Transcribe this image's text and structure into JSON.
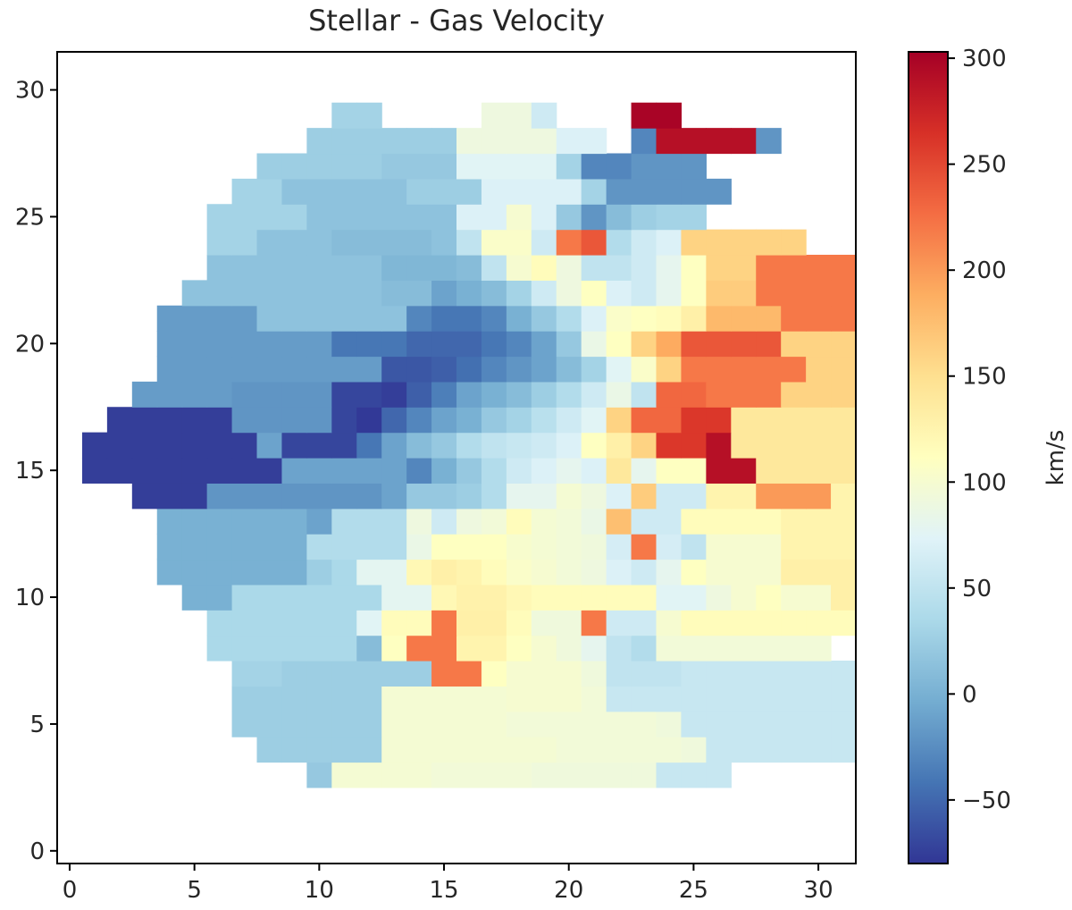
{
  "chart_data": {
    "type": "heatmap",
    "title": "Stellar - Gas Velocity",
    "xlim": [
      -0.5,
      31.5
    ],
    "ylim": [
      -0.5,
      31.5
    ],
    "x_ticks": [
      0,
      5,
      10,
      15,
      20,
      25,
      30
    ],
    "y_ticks": [
      0,
      5,
      10,
      15,
      20,
      25,
      30
    ],
    "colorbar": {
      "label": "km/s",
      "colormap": "RdYlBu_r",
      "vmin": -80,
      "vmax": 303,
      "ticks": [
        -50,
        0,
        50,
        100,
        150,
        200,
        250,
        300
      ],
      "tick_labels": [
        "−50",
        "0",
        "50",
        "100",
        "150",
        "200",
        "250",
        "300"
      ]
    },
    "row_start_y": 2.5,
    "rows": [
      {
        "y": 3,
        "x0": 10,
        "v": [
          20,
          98,
          98,
          98,
          98,
          95,
          95,
          95,
          95,
          92,
          92,
          92,
          92,
          92,
          55,
          55,
          55
        ]
      },
      {
        "y": 4,
        "x0": 8,
        "v": [
          25,
          25,
          25,
          25,
          25,
          98,
          98,
          98,
          98,
          98,
          98,
          98,
          95,
          95,
          95,
          95,
          95,
          92,
          55,
          55,
          55,
          55,
          55,
          55
        ]
      },
      {
        "y": 5,
        "x0": 7,
        "v": [
          25,
          25,
          25,
          25,
          25,
          25,
          98,
          98,
          98,
          98,
          98,
          95,
          95,
          95,
          95,
          95,
          95,
          92,
          55,
          55,
          55,
          55,
          55,
          55,
          55,
          55
        ]
      },
      {
        "y": 6,
        "x0": 7,
        "v": [
          25,
          25,
          25,
          25,
          25,
          25,
          98,
          98,
          98,
          98,
          98,
          100,
          100,
          100,
          95,
          55,
          55,
          55,
          55,
          55,
          55,
          55,
          55,
          55,
          55,
          55
        ]
      },
      {
        "y": 7,
        "x0": 7,
        "v": [
          30,
          30,
          25,
          25,
          25,
          25,
          25,
          25,
          220,
          220,
          110,
          100,
          100,
          100,
          92,
          50,
          50,
          50,
          55,
          55,
          55,
          55,
          55,
          55,
          55
        ]
      },
      {
        "y": 8,
        "x0": 6,
        "v": [
          35,
          35,
          35,
          35,
          35,
          35,
          10,
          110,
          220,
          220,
          125,
          125,
          110,
          100,
          92,
          80,
          50,
          40,
          95,
          95,
          95,
          95,
          95,
          95,
          95
        ]
      },
      {
        "y": 9,
        "x0": 6,
        "v": [
          35,
          35,
          35,
          35,
          35,
          35,
          75,
          115,
          115,
          220,
          130,
          130,
          115,
          92,
          92,
          220,
          60,
          60,
          100,
          115,
          115,
          115,
          115,
          115,
          115,
          115
        ]
      },
      {
        "y": 10,
        "x0": 5,
        "v": [
          0,
          0,
          35,
          35,
          35,
          35,
          35,
          35,
          78,
          78,
          120,
          128,
          128,
          120,
          115,
          115,
          115,
          115,
          115,
          75,
          75,
          90,
          100,
          110,
          100,
          100,
          130,
          130,
          130
        ]
      },
      {
        "y": 11,
        "x0": 4,
        "v": [
          0,
          0,
          0,
          0,
          0,
          0,
          25,
          35,
          78,
          78,
          120,
          130,
          125,
          115,
          105,
          100,
          95,
          90,
          70,
          60,
          80,
          110,
          100,
          100,
          100,
          130,
          130,
          130,
          130
        ]
      },
      {
        "y": 12,
        "x0": 4,
        "v": [
          0,
          0,
          0,
          0,
          0,
          0,
          40,
          40,
          40,
          40,
          85,
          110,
          110,
          110,
          102,
          98,
          95,
          92,
          65,
          220,
          65,
          50,
          100,
          100,
          100,
          125,
          125,
          125,
          125
        ]
      },
      {
        "y": 13,
        "x0": 4,
        "v": [
          0,
          0,
          0,
          0,
          0,
          0,
          -10,
          40,
          40,
          40,
          90,
          60,
          90,
          95,
          115,
          98,
          95,
          85,
          175,
          60,
          60,
          115,
          115,
          115,
          115,
          125,
          125,
          125,
          125
        ]
      },
      {
        "y": 14,
        "x0": 3,
        "v": [
          -75,
          -75,
          -75,
          -20,
          -20,
          -20,
          -20,
          -20,
          -20,
          -20,
          -10,
          20,
          20,
          25,
          40,
          80,
          80,
          98,
          90,
          70,
          165,
          60,
          60,
          125,
          125,
          200,
          200,
          200,
          125,
          125,
          125
        ]
      },
      {
        "y": 15,
        "x0": 1,
        "v": [
          -75,
          -75,
          -75,
          -75,
          -75,
          -75,
          -75,
          -75,
          -10,
          -10,
          -10,
          -10,
          -10,
          -30,
          0,
          20,
          40,
          60,
          70,
          80,
          70,
          140,
          80,
          110,
          110,
          290,
          290,
          140,
          140,
          140,
          140,
          140,
          140,
          140,
          140
        ]
      },
      {
        "y": 16,
        "x0": 1,
        "v": [
          -75,
          -75,
          -75,
          -75,
          -75,
          -75,
          -75,
          -10,
          -70,
          -70,
          -70,
          -40,
          -10,
          10,
          20,
          40,
          50,
          55,
          60,
          70,
          110,
          130,
          160,
          260,
          260,
          290,
          140,
          140,
          140,
          140,
          140,
          140,
          140
        ]
      },
      {
        "y": 17,
        "x0": 2,
        "v": [
          -75,
          -75,
          -75,
          -75,
          -75,
          -20,
          -20,
          -20,
          -20,
          -70,
          -78,
          -50,
          -30,
          -10,
          0,
          20,
          30,
          45,
          60,
          75,
          160,
          230,
          230,
          260,
          260,
          140,
          140,
          140,
          140,
          140,
          140,
          140
        ]
      },
      {
        "y": 18,
        "x0": 3,
        "v": [
          -15,
          -15,
          -15,
          -15,
          -20,
          -20,
          -20,
          -20,
          -70,
          -70,
          -75,
          -55,
          -35,
          -10,
          0,
          10,
          25,
          40,
          60,
          85,
          50,
          230,
          230,
          220,
          220,
          220,
          160,
          160,
          160,
          160,
          160,
          160
        ]
      },
      {
        "y": 19,
        "x0": 4,
        "v": [
          -15,
          -15,
          -15,
          -15,
          -15,
          -15,
          -15,
          -15,
          -15,
          -60,
          -60,
          -55,
          -45,
          -30,
          -20,
          -10,
          10,
          30,
          75,
          105,
          160,
          220,
          220,
          220,
          220,
          220,
          160,
          160,
          160,
          160
        ]
      },
      {
        "y": 20,
        "x0": 4,
        "v": [
          -15,
          -15,
          -15,
          -15,
          -15,
          -15,
          -15,
          -40,
          -40,
          -40,
          -50,
          -50,
          -50,
          -40,
          -30,
          -10,
          20,
          85,
          110,
          160,
          190,
          240,
          240,
          240,
          240,
          160,
          160,
          160,
          160
        ]
      },
      {
        "y": 21,
        "x0": 4,
        "v": [
          -15,
          -15,
          -15,
          -15,
          15,
          15,
          15,
          15,
          15,
          15,
          -30,
          -40,
          -40,
          -30,
          0,
          20,
          40,
          70,
          105,
          110,
          115,
          130,
          180,
          180,
          180,
          220,
          220,
          220,
          220
        ]
      },
      {
        "y": 22,
        "x0": 5,
        "v": [
          15,
          15,
          15,
          15,
          15,
          15,
          15,
          15,
          10,
          10,
          -10,
          0,
          10,
          30,
          60,
          90,
          110,
          70,
          60,
          80,
          110,
          165,
          165,
          220,
          220,
          220,
          220,
          220
        ]
      },
      {
        "y": 23,
        "x0": 6,
        "v": [
          15,
          15,
          15,
          15,
          15,
          15,
          15,
          5,
          5,
          5,
          10,
          50,
          100,
          115,
          90,
          50,
          50,
          60,
          80,
          110,
          160,
          160,
          220,
          220,
          220,
          220
        ]
      },
      {
        "y": 24,
        "x0": 6,
        "v": [
          30,
          30,
          15,
          15,
          15,
          10,
          10,
          10,
          10,
          15,
          50,
          105,
          105,
          60,
          220,
          240,
          40,
          60,
          70,
          160,
          160,
          160,
          160,
          160
        ]
      },
      {
        "y": 25,
        "x0": 6,
        "v": [
          30,
          30,
          30,
          30,
          15,
          15,
          15,
          15,
          15,
          15,
          70,
          70,
          100,
          70,
          20,
          -20,
          10,
          25,
          30,
          30
        ]
      },
      {
        "y": 26,
        "x0": 7,
        "v": [
          30,
          30,
          15,
          15,
          15,
          15,
          15,
          25,
          25,
          25,
          70,
          70,
          70,
          70,
          30,
          -20,
          -20,
          -20,
          -20,
          -20
        ]
      },
      {
        "y": 27,
        "x0": 8,
        "v": [
          25,
          25,
          25,
          25,
          25,
          20,
          20,
          20,
          75,
          75,
          75,
          75,
          30,
          -30,
          -30,
          -20,
          -20,
          -20
        ]
      },
      {
        "y": 28,
        "x0": 10,
        "v": [
          25,
          25,
          25,
          25,
          25,
          25,
          90,
          90,
          90,
          90,
          70,
          70,
          null,
          -30,
          290,
          290,
          290,
          290,
          -20
        ]
      },
      {
        "y": 29,
        "x0": 11,
        "v": [
          30,
          30,
          null,
          null,
          null,
          null,
          90,
          90,
          60,
          null,
          null,
          null,
          300,
          300,
          null,
          null
        ]
      }
    ]
  }
}
